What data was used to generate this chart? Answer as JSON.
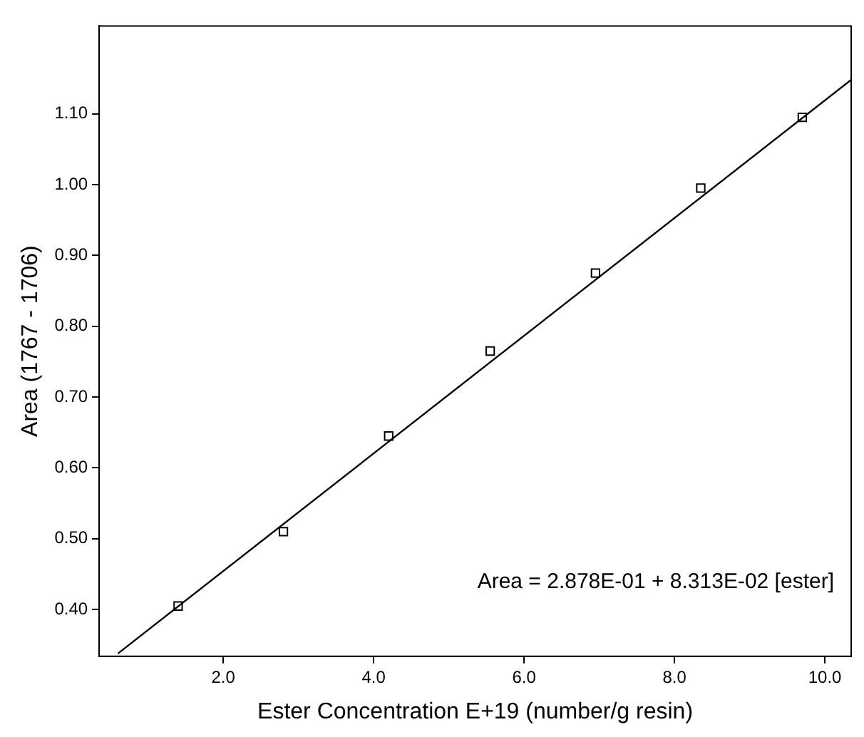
{
  "chart_data": {
    "type": "scatter",
    "xlabel": "Ester Concentration E+19 (number/g resin)",
    "ylabel": "Area (1767 - 1706)",
    "xlim": [
      0.35,
      10.35
    ],
    "ylim": [
      0.334,
      1.224
    ],
    "xticks": [
      {
        "value": 2,
        "label": "2.0"
      },
      {
        "value": 4,
        "label": "4.0"
      },
      {
        "value": 6,
        "label": "6.0"
      },
      {
        "value": 8,
        "label": "8.0"
      },
      {
        "value": 10,
        "label": "10.0"
      }
    ],
    "yticks": [
      {
        "value": 0.4,
        "label": "0.40"
      },
      {
        "value": 0.5,
        "label": "0.50"
      },
      {
        "value": 0.6,
        "label": "0.60"
      },
      {
        "value": 0.7,
        "label": "0.70"
      },
      {
        "value": 0.8,
        "label": "0.80"
      },
      {
        "value": 0.9,
        "label": "0.90"
      },
      {
        "value": 1.0,
        "label": "1.00"
      },
      {
        "value": 1.1,
        "label": "1.10"
      }
    ],
    "grid": false,
    "legend": false,
    "series": [
      {
        "marker": "square",
        "color": "#000000",
        "x": [
          1.4,
          2.8,
          4.2,
          5.55,
          6.95,
          8.35,
          9.7
        ],
        "values": [
          0.405,
          0.51,
          0.645,
          0.765,
          0.875,
          0.995,
          1.095
        ]
      },
      {
        "type": "line",
        "marker": "none",
        "color": "#000000",
        "x": [
          0.6,
          10.35
        ],
        "values": [
          0.338,
          1.148
        ]
      }
    ],
    "annotations": [
      "Area = 2.878E-01 + 8.313E-02 [ester]"
    ]
  }
}
